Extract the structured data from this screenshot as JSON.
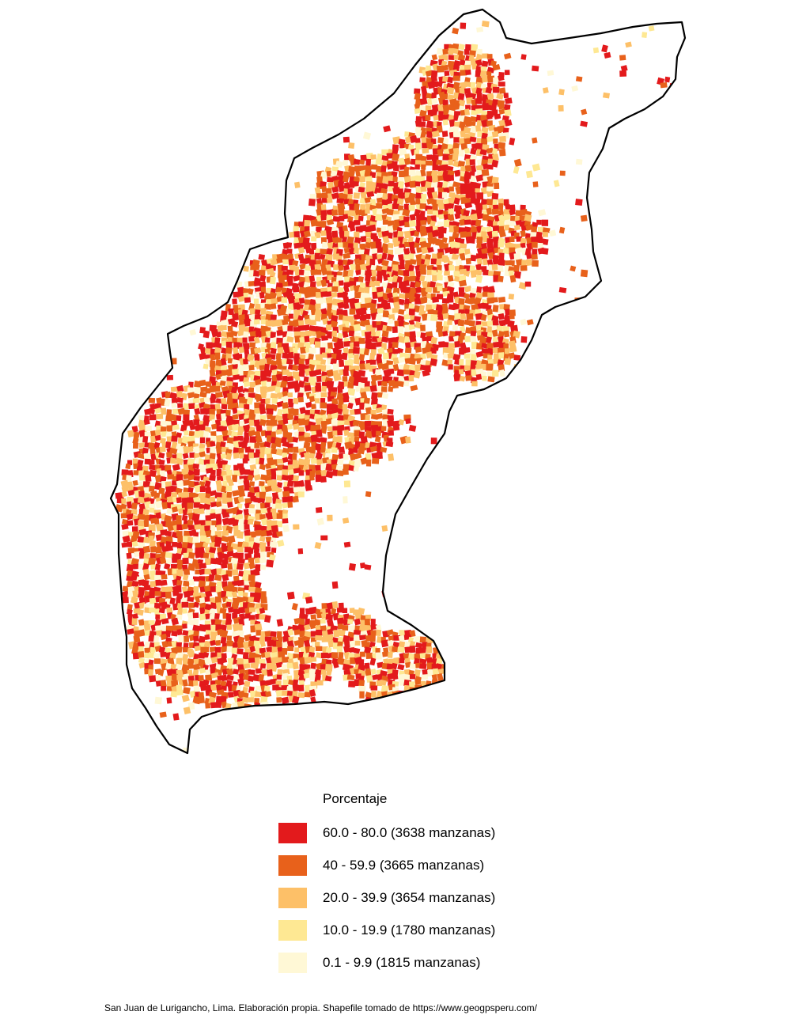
{
  "map": {
    "region": "San Juan de Lurigancho, Lima",
    "colors": {
      "boundary": "#000000",
      "class_1": "#e31a1c",
      "class_2": "#e8611b",
      "class_3": "#fdc068",
      "class_4": "#fee893",
      "class_5": "#fff8d6"
    }
  },
  "legend": {
    "title": "Porcentaje",
    "items": [
      {
        "label": "60.0 - 80.0 (3638 manzanas)",
        "color": "#e31a1c"
      },
      {
        "label": "40 - 59.9 (3665 manzanas)",
        "color": "#e8611b"
      },
      {
        "label": "20.0 - 39.9 (3654 manzanas)",
        "color": "#fdc068"
      },
      {
        "label": "10.0 - 19.9 (1780 manzanas)",
        "color": "#fee893"
      },
      {
        "label": "0.1 - 9.9 (1815 manzanas)",
        "color": "#fff8d6"
      }
    ]
  },
  "caption": "San Juan de Lurigancho, Lima. Elaboración propia. Shapefile tomado de https://www.geogpsperu.com/"
}
